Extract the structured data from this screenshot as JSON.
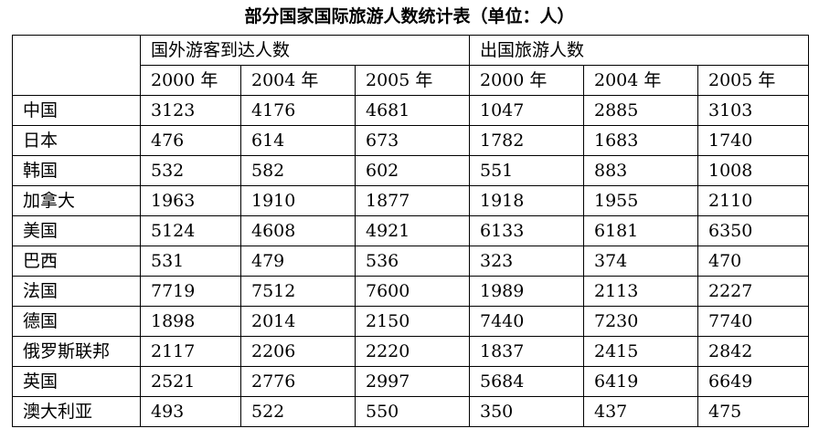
{
  "title": "部分国家国际旅游人数统计表（单位：人）",
  "groups": [
    "国外游客到达人数",
    "出国旅游人数"
  ],
  "years": [
    "2000 年",
    "2004 年",
    "2005 年",
    "2000 年",
    "2004 年",
    "2005 年"
  ],
  "rows": [
    {
      "country": "中国",
      "values": [
        "3123",
        "4176",
        "4681",
        "1047",
        "2885",
        "3103"
      ]
    },
    {
      "country": "日本",
      "values": [
        "476",
        "614",
        "673",
        "1782",
        "1683",
        "1740"
      ]
    },
    {
      "country": "韩国",
      "values": [
        "532",
        "582",
        "602",
        "551",
        "883",
        "1008"
      ]
    },
    {
      "country": "加拿大",
      "values": [
        "1963",
        "1910",
        "1877",
        "1918",
        "1955",
        "2110"
      ]
    },
    {
      "country": "美国",
      "values": [
        "5124",
        "4608",
        "4921",
        "6133",
        "6181",
        "6350"
      ]
    },
    {
      "country": "巴西",
      "values": [
        "531",
        "479",
        "536",
        "323",
        "374",
        "470"
      ]
    },
    {
      "country": "法国",
      "values": [
        "7719",
        "7512",
        "7600",
        "1989",
        "2113",
        "2227"
      ]
    },
    {
      "country": "德国",
      "values": [
        "1898",
        "2014",
        "2150",
        "7440",
        "7230",
        "7740"
      ]
    },
    {
      "country": "俄罗斯联邦",
      "values": [
        "2117",
        "2206",
        "2220",
        "1837",
        "2415",
        "2842"
      ]
    },
    {
      "country": "英国",
      "values": [
        "2521",
        "2776",
        "2997",
        "5684",
        "6419",
        "6649"
      ]
    },
    {
      "country": "澳大利亚",
      "values": [
        "493",
        "522",
        "550",
        "350",
        "437",
        "475"
      ]
    }
  ]
}
